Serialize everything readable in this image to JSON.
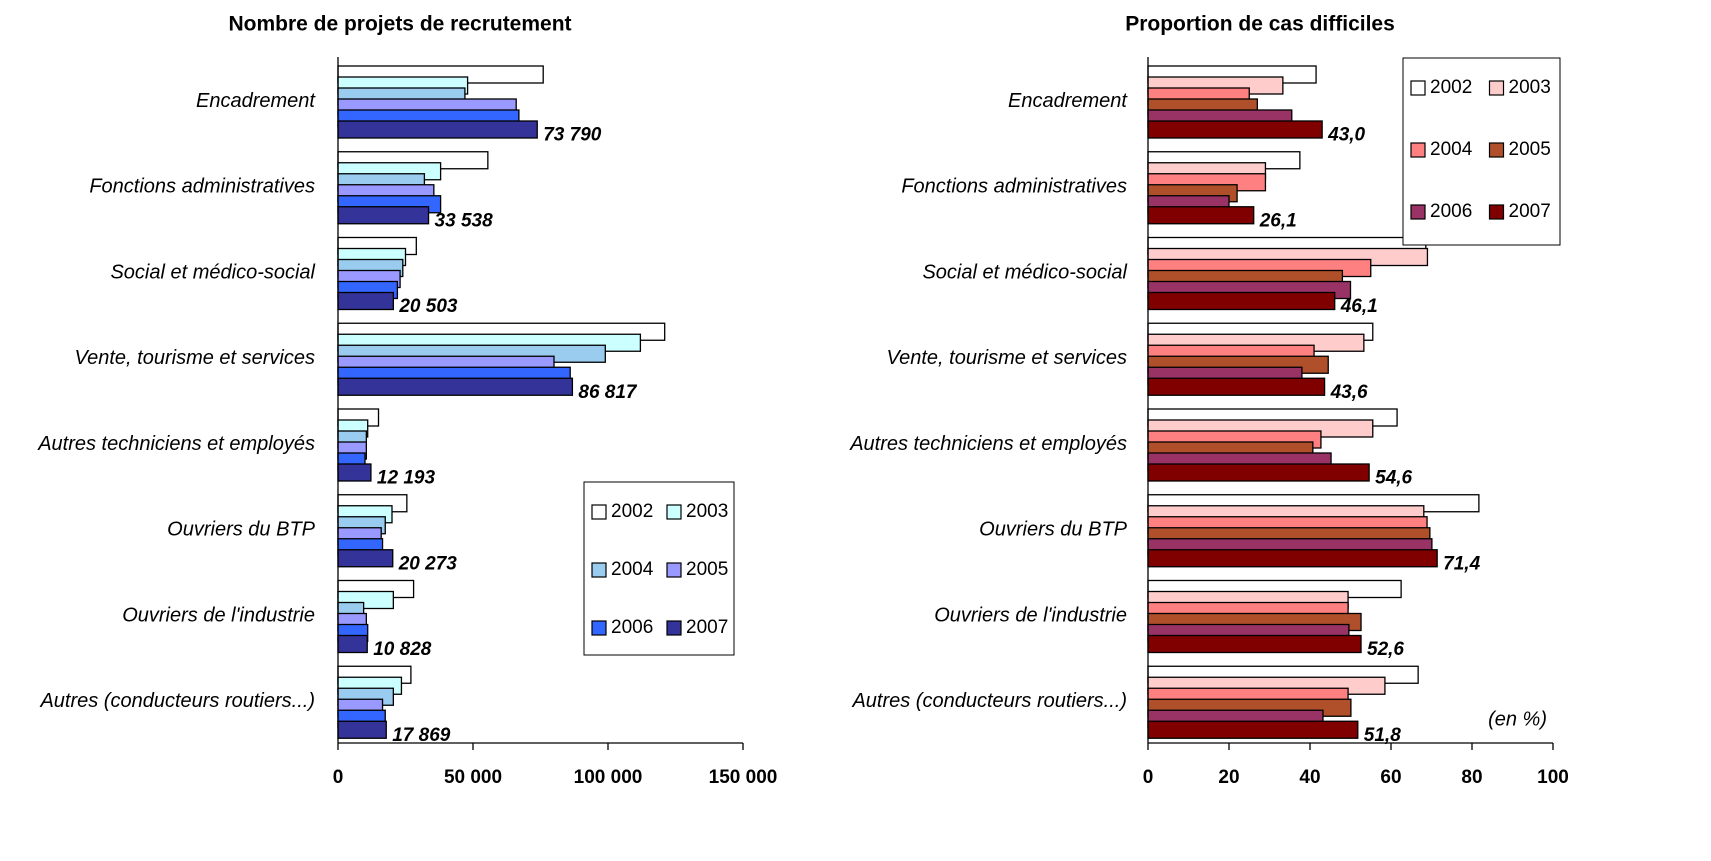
{
  "chart_data": [
    {
      "type": "bar",
      "orientation": "horizontal",
      "title": "Nombre de projets de recrutement",
      "categories": [
        "Encadrement",
        "Fonctions administratives",
        "Social et médico-social",
        "Vente, tourisme et services",
        "Autres techniciens et employés",
        "Ouvriers du BTP",
        "Ouvriers de l'industrie",
        "Autres (conducteurs routiers...)"
      ],
      "series": [
        {
          "name": "2002",
          "color": "#ffffff",
          "values": [
            76000,
            55500,
            29000,
            121000,
            15000,
            25500,
            28000,
            27000
          ]
        },
        {
          "name": "2003",
          "color": "#ccffff",
          "values": [
            48000,
            38000,
            25000,
            112000,
            11000,
            20000,
            20500,
            23500
          ]
        },
        {
          "name": "2004",
          "color": "#99ccee",
          "values": [
            47000,
            32000,
            24000,
            99000,
            10500,
            17500,
            9500,
            20500
          ]
        },
        {
          "name": "2005",
          "color": "#9999ff",
          "values": [
            66000,
            35500,
            23000,
            80000,
            10500,
            16000,
            10500,
            16500
          ]
        },
        {
          "name": "2006",
          "color": "#3366ff",
          "values": [
            67000,
            38000,
            22000,
            86000,
            10000,
            16500,
            11000,
            17500
          ]
        },
        {
          "name": "2007",
          "color": "#333399",
          "values": [
            73790,
            33538,
            20503,
            86817,
            12193,
            20273,
            10828,
            17869
          ],
          "value_labels": [
            "73 790",
            "33 538",
            "20 503",
            "86 817",
            "12 193",
            "20 273",
            "10 828",
            "17 869"
          ]
        }
      ],
      "xlim": [
        0,
        150000
      ],
      "xticks": [
        0,
        {
          "value": 50000,
          "label": "50 000"
        },
        {
          "value": 100000,
          "label": "100 000"
        },
        {
          "value": 150000,
          "label": "150 000"
        }
      ],
      "legend_position": "lower right"
    },
    {
      "type": "bar",
      "orientation": "horizontal",
      "title": "Proportion de cas difficiles",
      "categories": [
        "Encadrement",
        "Fonctions administratives",
        "Social et médico-social",
        "Vente, tourisme et services",
        "Autres techniciens et employés",
        "Ouvriers du BTP",
        "Ouvriers de l'industrie",
        "Autres (conducteurs routiers...)"
      ],
      "series": [
        {
          "name": "2002",
          "color": "#ffffff",
          "values": [
            41.5,
            37.5,
            68.6,
            55.5,
            61.5,
            81.7,
            62.5,
            66.7
          ]
        },
        {
          "name": "2003",
          "color": "#ffcccc",
          "values": [
            33.3,
            29,
            69,
            53.3,
            55.5,
            68.1,
            49.4,
            58.5
          ]
        },
        {
          "name": "2004",
          "color": "#ff8080",
          "values": [
            25,
            29,
            55,
            41,
            42.7,
            68.9,
            49.4,
            49.4
          ]
        },
        {
          "name": "2005",
          "color": "#b0502a",
          "values": [
            27,
            22,
            48,
            44.5,
            40.7,
            69.6,
            52.6,
            50.1
          ]
        },
        {
          "name": "2006",
          "color": "#993366",
          "values": [
            35.5,
            20,
            50,
            38,
            45.2,
            70.1,
            49.6,
            43.2
          ]
        },
        {
          "name": "2007",
          "color": "#800000",
          "values": [
            43.0,
            26.1,
            46.1,
            43.6,
            54.6,
            71.4,
            52.6,
            51.8
          ],
          "value_labels": [
            "43,0",
            "26,1",
            "46,1",
            "43,6",
            "54,6",
            "71,4",
            "52,6",
            "51,8"
          ]
        }
      ],
      "xlim": [
        0,
        100
      ],
      "xticks": [
        0,
        20,
        40,
        60,
        80,
        100
      ],
      "annotation": "(en %)",
      "legend_position": "upper right"
    }
  ]
}
